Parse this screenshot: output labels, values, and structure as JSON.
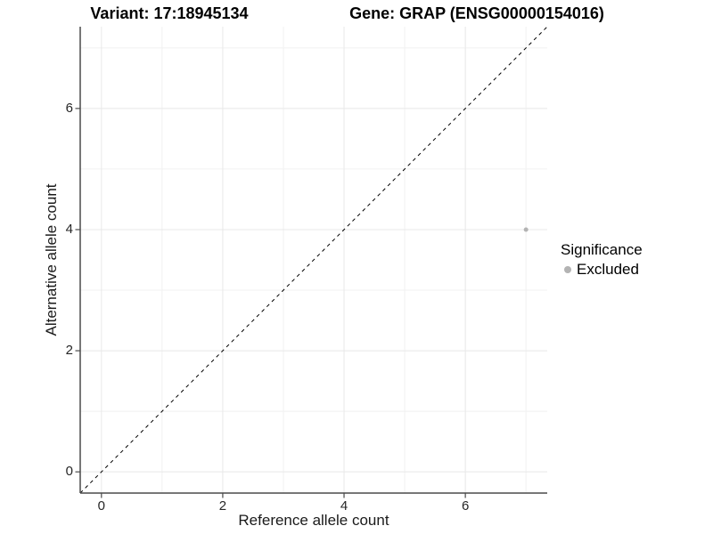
{
  "chart_data": {
    "type": "scatter",
    "title_left": "Variant: 17:18945134",
    "title_right": "Gene: GRAP (ENSG00000154016)",
    "xlabel": "Reference allele count",
    "ylabel": "Alternative allele count",
    "xlim": [
      -0.35,
      7.35
    ],
    "ylim": [
      -0.35,
      7.35
    ],
    "x_ticks": [
      0,
      2,
      4,
      6
    ],
    "y_ticks": [
      0,
      2,
      4,
      6
    ],
    "x_minor_ticks": [
      1,
      3,
      5,
      7
    ],
    "y_minor_ticks": [
      1,
      3,
      5,
      7
    ],
    "grid": true,
    "identity_line": {
      "style": "dashed",
      "from": [
        -0.35,
        -0.35
      ],
      "to": [
        7.35,
        7.35
      ],
      "color": "#000000"
    },
    "series": [
      {
        "name": "Excluded",
        "color": "#b3b3b3",
        "points": [
          {
            "x": 7,
            "y": 4
          }
        ]
      }
    ],
    "legend": {
      "position": "right",
      "title": "Significance",
      "items": [
        {
          "label": "Excluded",
          "color": "#b3b3b3",
          "marker": "circle"
        }
      ]
    },
    "colors": {
      "grid_major": "#e8e8e8",
      "grid_minor": "#f1f1f1",
      "axis_line": "#4a4a4a",
      "tick_mark": "#4a4a4a",
      "background": "#ffffff"
    }
  }
}
